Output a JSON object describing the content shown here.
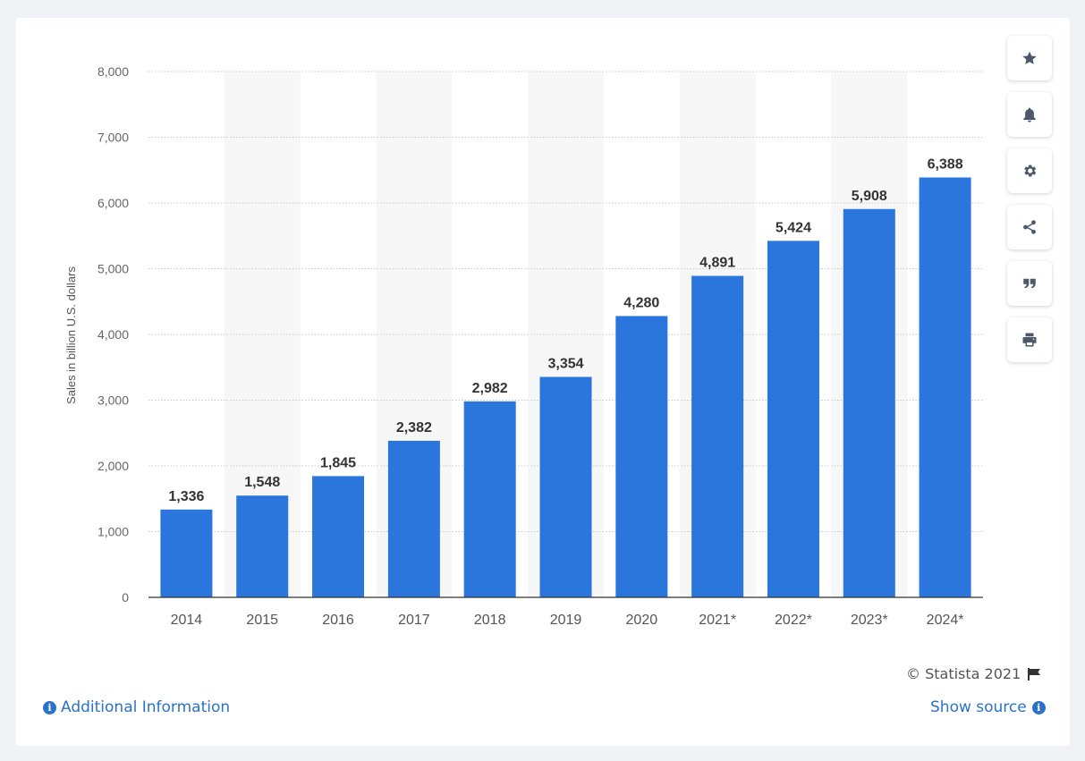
{
  "chart_data": {
    "type": "bar",
    "categories": [
      "2014",
      "2015",
      "2016",
      "2017",
      "2018",
      "2019",
      "2020",
      "2021*",
      "2022*",
      "2023*",
      "2024*"
    ],
    "values": [
      1336,
      1548,
      1845,
      2382,
      2982,
      3354,
      4280,
      4891,
      5424,
      5908,
      6388
    ],
    "value_labels": [
      "1,336",
      "1,548",
      "1,845",
      "2,382",
      "2,982",
      "3,354",
      "4,280",
      "4,891",
      "5,424",
      "5,908",
      "6,388"
    ],
    "ylabel": "Sales in billion U.S. dollars",
    "xlabel": "",
    "ylim": [
      0,
      8000
    ],
    "yticks": [
      0,
      1000,
      2000,
      3000,
      4000,
      5000,
      6000,
      7000,
      8000
    ],
    "ytick_labels": [
      "0",
      "1,000",
      "2,000",
      "3,000",
      "4,000",
      "5,000",
      "6,000",
      "7,000",
      "8,000"
    ],
    "grid": true,
    "bar_color": "#2a76dd"
  },
  "footer": {
    "additional_info": "Additional Information",
    "copyright": "© Statista 2021",
    "show_source": "Show source"
  },
  "toolbar": [
    "star-icon",
    "bell-icon",
    "gear-icon",
    "share-icon",
    "quote-icon",
    "print-icon"
  ],
  "colors": {
    "link": "#2a72c9",
    "bar": "#2a76dd",
    "band": "#f7f7f7"
  }
}
